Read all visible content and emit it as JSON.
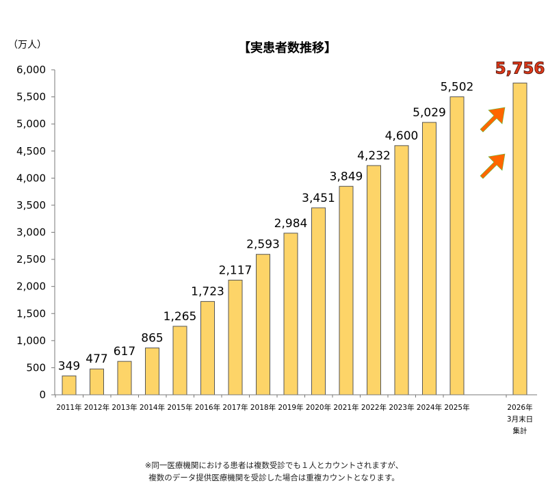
{
  "chart_data": {
    "type": "bar",
    "title": "【実患者数推移】",
    "unit_label": "（万人）",
    "categories": [
      "2011年",
      "2012年",
      "2013年",
      "2014年",
      "2015年",
      "2016年",
      "2017年",
      "2018年",
      "2019年",
      "2020年",
      "2021年",
      "2022年",
      "2023年",
      "2024年",
      "2025年",
      "2026年 3月末日 集計"
    ],
    "values": [
      349,
      477,
      617,
      865,
      1265,
      1723,
      2117,
      2593,
      2984,
      3451,
      3849,
      4232,
      4600,
      5029,
      5502,
      5756
    ],
    "value_labels": [
      "349",
      "477",
      "617",
      "865",
      "1,265",
      "1,723",
      "2,117",
      "2,593",
      "2,984",
      "3,451",
      "3,849",
      "4,232",
      "4,600",
      "5,029",
      "5,502",
      "5,756"
    ],
    "highlight_index": 15,
    "yticks": [
      "0",
      "500",
      "1,000",
      "1,500",
      "2,000",
      "2,500",
      "3,000",
      "3,500",
      "4,000",
      "4,500",
      "5,000",
      "5,500",
      "6,000"
    ],
    "ylim": [
      0,
      6000
    ],
    "grid": false,
    "bar_color": "#fdd468",
    "bar_edge_color": "#555555",
    "arrow_color": "#ff6600",
    "highlight_color": "#e23a1a"
  },
  "footnote": {
    "line1": "※同一医療機関における患者は複数受診でも１人とカウントされますが、",
    "line2": "複数のデータ提供医療機関を受診した場合は重複カウントとなります。"
  }
}
